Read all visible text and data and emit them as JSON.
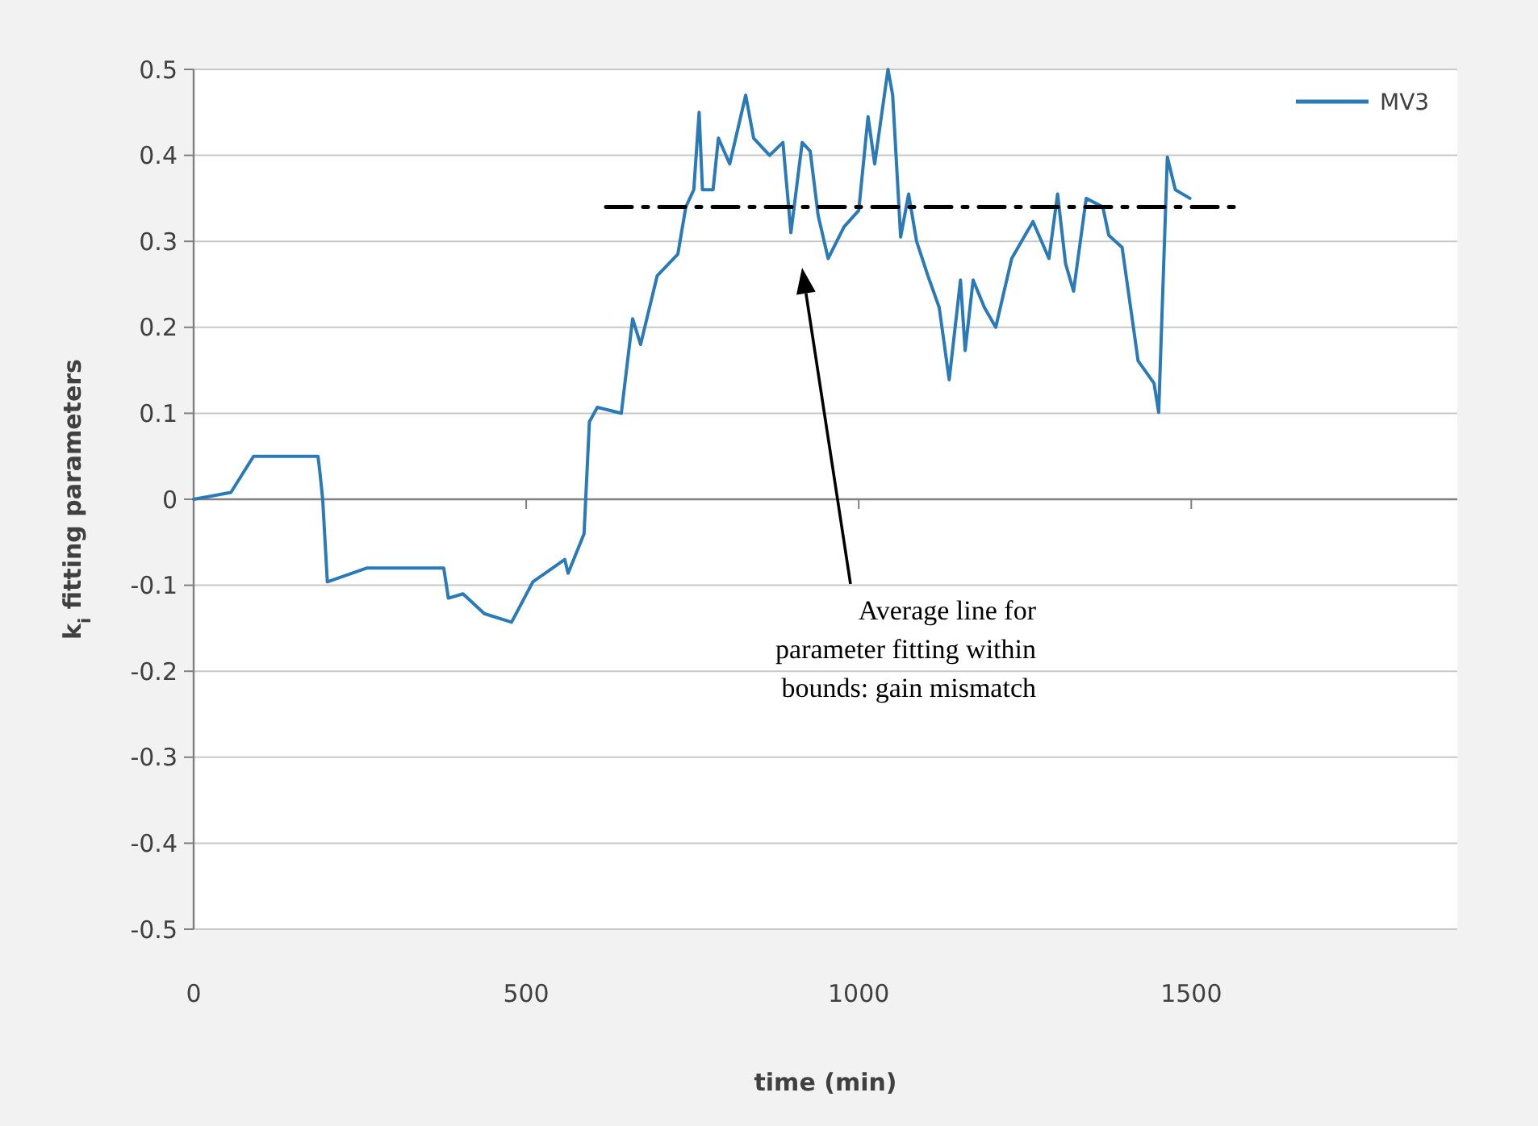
{
  "chart_data": {
    "type": "line",
    "xlabel": "time (min)",
    "ylabel": "k$_{i}$ fitting parameters",
    "xlim": [
      0,
      1900
    ],
    "xticks": [
      0,
      500,
      1000,
      1500
    ],
    "ylim": [
      -0.5,
      0.5
    ],
    "yticks": [
      -0.5,
      -0.4,
      -0.3,
      -0.2,
      -0.1,
      0,
      0.1,
      0.2,
      0.3,
      0.4,
      0.5
    ],
    "grid": "y",
    "legend": "top right",
    "marker": "none",
    "series": [
      {
        "name": "MV3",
        "color": "#2a7ab8",
        "x": [
          0,
          56,
          90,
          187,
          190,
          194,
          201,
          260,
          376,
          383,
          405,
          437,
          478,
          510,
          558,
          563,
          587,
          595,
          607,
          643,
          660,
          672,
          697,
          728,
          740,
          752,
          760,
          765,
          781,
          789,
          806,
          830,
          842,
          866,
          886,
          898,
          915,
          927,
          939,
          954,
          978,
          1000,
          1014,
          1024,
          1044,
          1051,
          1063,
          1075,
          1087,
          1104,
          1121,
          1136,
          1153,
          1160,
          1172,
          1189,
          1206,
          1230,
          1262,
          1286,
          1299,
          1311,
          1323,
          1342,
          1367,
          1376,
          1396,
          1413,
          1420,
          1444,
          1451,
          1464,
          1476,
          1498
        ],
        "values": [
          0,
          0.008,
          0.05,
          0.05,
          0.03,
          0,
          -0.096,
          -0.08,
          -0.08,
          -0.115,
          -0.11,
          -0.133,
          -0.143,
          -0.096,
          -0.07,
          -0.086,
          -0.04,
          0.09,
          0.107,
          0.1,
          0.21,
          0.18,
          0.26,
          0.285,
          0.34,
          0.36,
          0.45,
          0.36,
          0.36,
          0.42,
          0.39,
          0.47,
          0.42,
          0.4,
          0.415,
          0.31,
          0.415,
          0.405,
          0.33,
          0.28,
          0.317,
          0.336,
          0.445,
          0.39,
          0.5,
          0.47,
          0.305,
          0.355,
          0.3,
          0.26,
          0.223,
          0.139,
          0.255,
          0.173,
          0.255,
          0.223,
          0.2,
          0.28,
          0.323,
          0.28,
          0.355,
          0.274,
          0.242,
          0.35,
          0.34,
          0.307,
          0.293,
          0.2,
          0.161,
          0.135,
          0.101,
          0.398,
          0.36,
          0.35
        ]
      },
      {
        "type": "line",
        "color": "#000000",
        "line_style": "dashed",
        "x": [
          620,
          1565
        ],
        "values": [
          0.34,
          0.34
        ]
      }
    ],
    "annotations": [
      "Average line for parameter fitting within bounds: gain mismatch"
    ]
  }
}
